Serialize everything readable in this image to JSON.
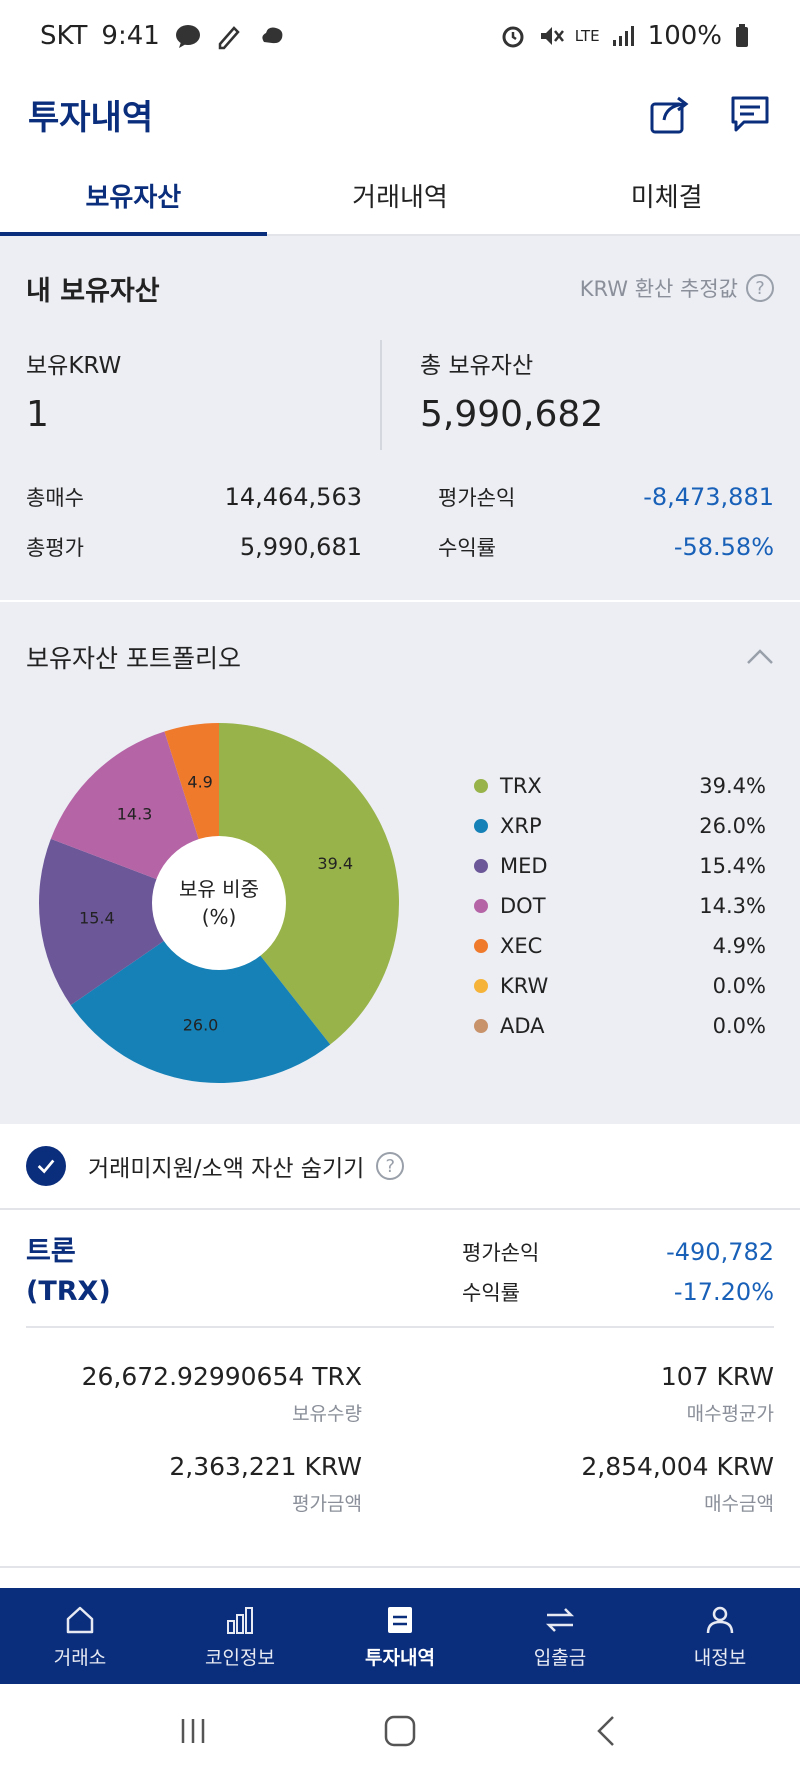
{
  "status_bar": {
    "carrier": "SKT",
    "time": "9:41",
    "battery": "100%",
    "network": "LTE"
  },
  "header": {
    "title": "투자내역",
    "share_icon": "share-icon",
    "chat_icon": "chat-icon"
  },
  "tabs": [
    {
      "label": "보유자산",
      "active": true
    },
    {
      "label": "거래내역",
      "active": false
    },
    {
      "label": "미체결",
      "active": false
    }
  ],
  "summary": {
    "title": "내 보유자산",
    "note": "KRW 환산 추정값",
    "krw_label": "보유KRW",
    "krw_value": "1",
    "total_label": "총 보유자산",
    "total_value": "5,990,682",
    "buy_label": "총매수",
    "buy_value": "14,464,563",
    "eval_label": "총평가",
    "eval_value": "5,990,681",
    "pl_label": "평가손익",
    "pl_value": "-8,473,881",
    "rate_label": "수익률",
    "rate_value": "-58.58%"
  },
  "portfolio": {
    "title": "보유자산 포트폴리오",
    "center_label_1": "보유 비중",
    "center_label_2": "(%)",
    "items": [
      {
        "symbol": "TRX",
        "pct": "39.4%",
        "value": 39.4,
        "color": "#98b34a"
      },
      {
        "symbol": "XRP",
        "pct": "26.0%",
        "value": 26.0,
        "color": "#1681b6"
      },
      {
        "symbol": "MED",
        "pct": "15.4%",
        "value": 15.4,
        "color": "#6c5799"
      },
      {
        "symbol": "DOT",
        "pct": "14.3%",
        "value": 14.3,
        "color": "#b565a6"
      },
      {
        "symbol": "XEC",
        "pct": "4.9%",
        "value": 4.9,
        "color": "#f07a2c"
      },
      {
        "symbol": "KRW",
        "pct": "0.0%",
        "value": 0.0,
        "color": "#f5b33a"
      },
      {
        "symbol": "ADA",
        "pct": "0.0%",
        "value": 0.0,
        "color": "#c8926a"
      }
    ],
    "slice_labels": [
      "39.4",
      "26.0",
      "15.4",
      "14.3",
      "4.9"
    ]
  },
  "hide_small": {
    "label": "거래미지원/소액 자산 숨기기",
    "checked": true
  },
  "coin": {
    "name_line1": "트론",
    "name_line2": "(TRX)",
    "pl_label": "평가손익",
    "pl_value": "-490,782",
    "rate_label": "수익률",
    "rate_value": "-17.20%",
    "qty_value": "26,672.92990654 TRX",
    "qty_label": "보유수량",
    "avg_value": "107  KRW",
    "avg_label": "매수평균가",
    "eval_value": "2,363,221  KRW",
    "eval_label": "평가금액",
    "buy_value": "2,854,004  KRW",
    "buy_label": "매수금액"
  },
  "bottom_nav": [
    {
      "label": "거래소",
      "icon": "home-icon",
      "active": false
    },
    {
      "label": "코인정보",
      "icon": "bar-chart-icon",
      "active": false
    },
    {
      "label": "투자내역",
      "icon": "document-icon",
      "active": true
    },
    {
      "label": "입출금",
      "icon": "transfer-icon",
      "active": false
    },
    {
      "label": "내정보",
      "icon": "person-icon",
      "active": false
    }
  ]
}
